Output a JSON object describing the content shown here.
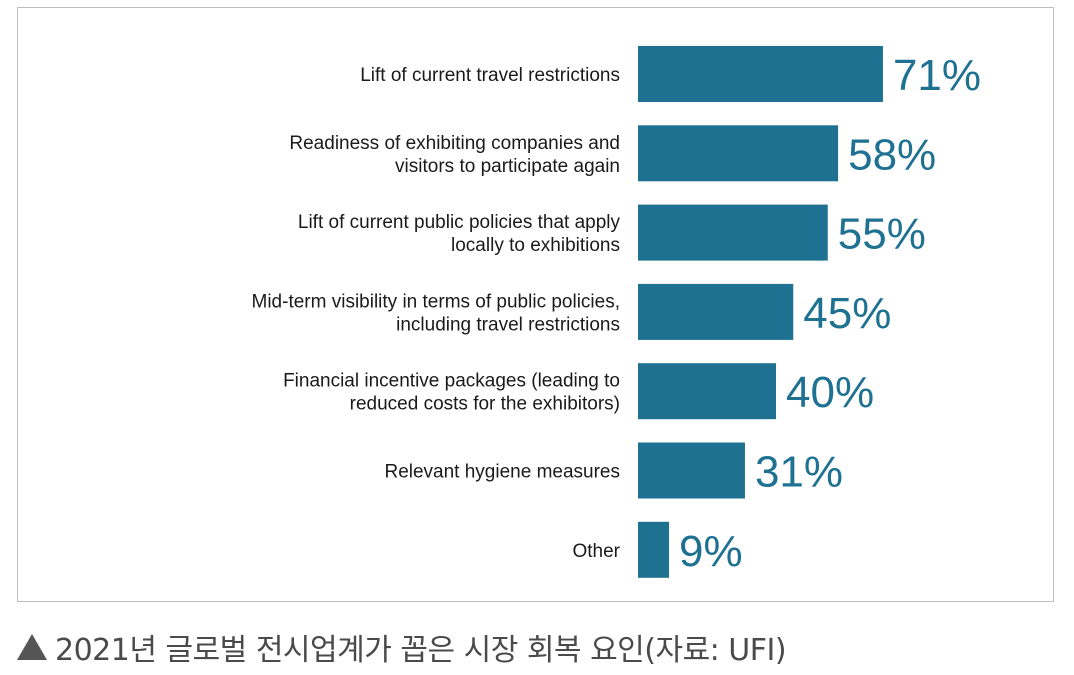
{
  "caption": {
    "text": "2021년 글로벌 전시업계가 꼽은 시장 회복 요인(자료: UFI)",
    "marker_icon": "triangle-up-icon"
  },
  "colors": {
    "bar": "#1f7192",
    "value_text": "#1f7192",
    "label_text": "#1a1a1a",
    "frame_border": "#bdbdbd",
    "caption_text": "#4a4a4a"
  },
  "chart_data": {
    "type": "bar",
    "orientation": "horizontal",
    "title": "",
    "xlabel": "",
    "ylabel": "",
    "xlim": [
      0,
      100
    ],
    "grid": false,
    "legend": "none",
    "categories": [
      [
        "Lift of current travel restrictions"
      ],
      [
        "Readiness of exhibiting companies and",
        "visitors to participate again"
      ],
      [
        "Lift of current public policies that apply",
        "locally to exhibitions"
      ],
      [
        "Mid-term visibility in terms of public policies,",
        "including travel restrictions"
      ],
      [
        "Financial incentive packages (leading to",
        "reduced costs for the exhibitors)"
      ],
      [
        "Relevant hygiene measures"
      ],
      [
        "Other"
      ]
    ],
    "values": [
      71,
      58,
      55,
      45,
      40,
      31,
      9
    ],
    "value_labels": [
      "71%",
      "58%",
      "55%",
      "45%",
      "40%",
      "31%",
      "9%"
    ]
  }
}
